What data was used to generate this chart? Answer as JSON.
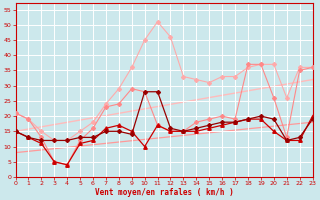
{
  "background_color": "#cce8ec",
  "grid_color": "#b0d8dc",
  "xlabel": "Vent moyen/en rafales ( km/h )",
  "xlim": [
    0,
    23
  ],
  "ylim": [
    0,
    57
  ],
  "yticks": [
    0,
    5,
    10,
    15,
    20,
    25,
    30,
    35,
    40,
    45,
    50,
    55
  ],
  "xticks": [
    0,
    1,
    2,
    3,
    4,
    5,
    6,
    7,
    8,
    9,
    10,
    11,
    12,
    13,
    14,
    15,
    16,
    17,
    18,
    19,
    20,
    21,
    22,
    23
  ],
  "series": [
    {
      "x": [
        0,
        1,
        2,
        3,
        4,
        5,
        6,
        7,
        8,
        9,
        10,
        11,
        12,
        13,
        14,
        15,
        16,
        17,
        18,
        19,
        20,
        21,
        22,
        23
      ],
      "y": [
        21,
        19,
        15,
        12,
        12,
        15,
        18,
        24,
        29,
        36,
        45,
        51,
        46,
        33,
        32,
        31,
        33,
        33,
        36,
        37,
        37,
        26,
        36,
        36
      ],
      "color": "#ffaaaa",
      "lw": 0.8,
      "marker": "D",
      "ms": 2.0,
      "zorder": 2
    },
    {
      "x": [
        0,
        1,
        2,
        3,
        4,
        5,
        6,
        7,
        8,
        9,
        10,
        11,
        12,
        13,
        14,
        15,
        16,
        17,
        18,
        19,
        20,
        21,
        22,
        23
      ],
      "y": [
        21,
        19,
        13,
        5,
        4,
        12,
        16,
        23,
        24,
        29,
        28,
        17,
        15,
        15,
        18,
        19,
        20,
        19,
        37,
        37,
        26,
        13,
        35,
        36
      ],
      "color": "#ff8888",
      "lw": 0.8,
      "marker": "D",
      "ms": 2.0,
      "zorder": 3
    },
    {
      "x": [
        0,
        23
      ],
      "y": [
        15,
        32
      ],
      "color": "#ffbbbb",
      "lw": 1.0,
      "marker": null,
      "ms": 0,
      "zorder": 1
    },
    {
      "x": [
        0,
        23
      ],
      "y": [
        8,
        18
      ],
      "color": "#ff9999",
      "lw": 0.9,
      "marker": null,
      "ms": 0,
      "zorder": 1
    },
    {
      "x": [
        0,
        1,
        2,
        3,
        4,
        5,
        6,
        7,
        8,
        9,
        10,
        11,
        12,
        13,
        14,
        15,
        16,
        17,
        18,
        19,
        20,
        21,
        22,
        23
      ],
      "y": [
        15,
        13,
        11,
        5,
        4,
        11,
        12,
        16,
        17,
        15,
        10,
        17,
        15,
        15,
        15,
        16,
        17,
        18,
        19,
        19,
        15,
        12,
        12,
        20
      ],
      "color": "#cc0000",
      "lw": 0.9,
      "marker": "^",
      "ms": 2.5,
      "zorder": 4
    },
    {
      "x": [
        0,
        1,
        2,
        3,
        4,
        5,
        6,
        7,
        8,
        9,
        10,
        11,
        12,
        13,
        14,
        15,
        16,
        17,
        18,
        19,
        20,
        21,
        22,
        23
      ],
      "y": [
        15,
        13,
        12,
        12,
        12,
        13,
        13,
        15,
        15,
        14,
        28,
        28,
        16,
        15,
        16,
        17,
        18,
        18,
        19,
        20,
        19,
        12,
        13,
        19
      ],
      "color": "#990000",
      "lw": 0.9,
      "marker": "D",
      "ms": 2.0,
      "zorder": 4
    }
  ]
}
